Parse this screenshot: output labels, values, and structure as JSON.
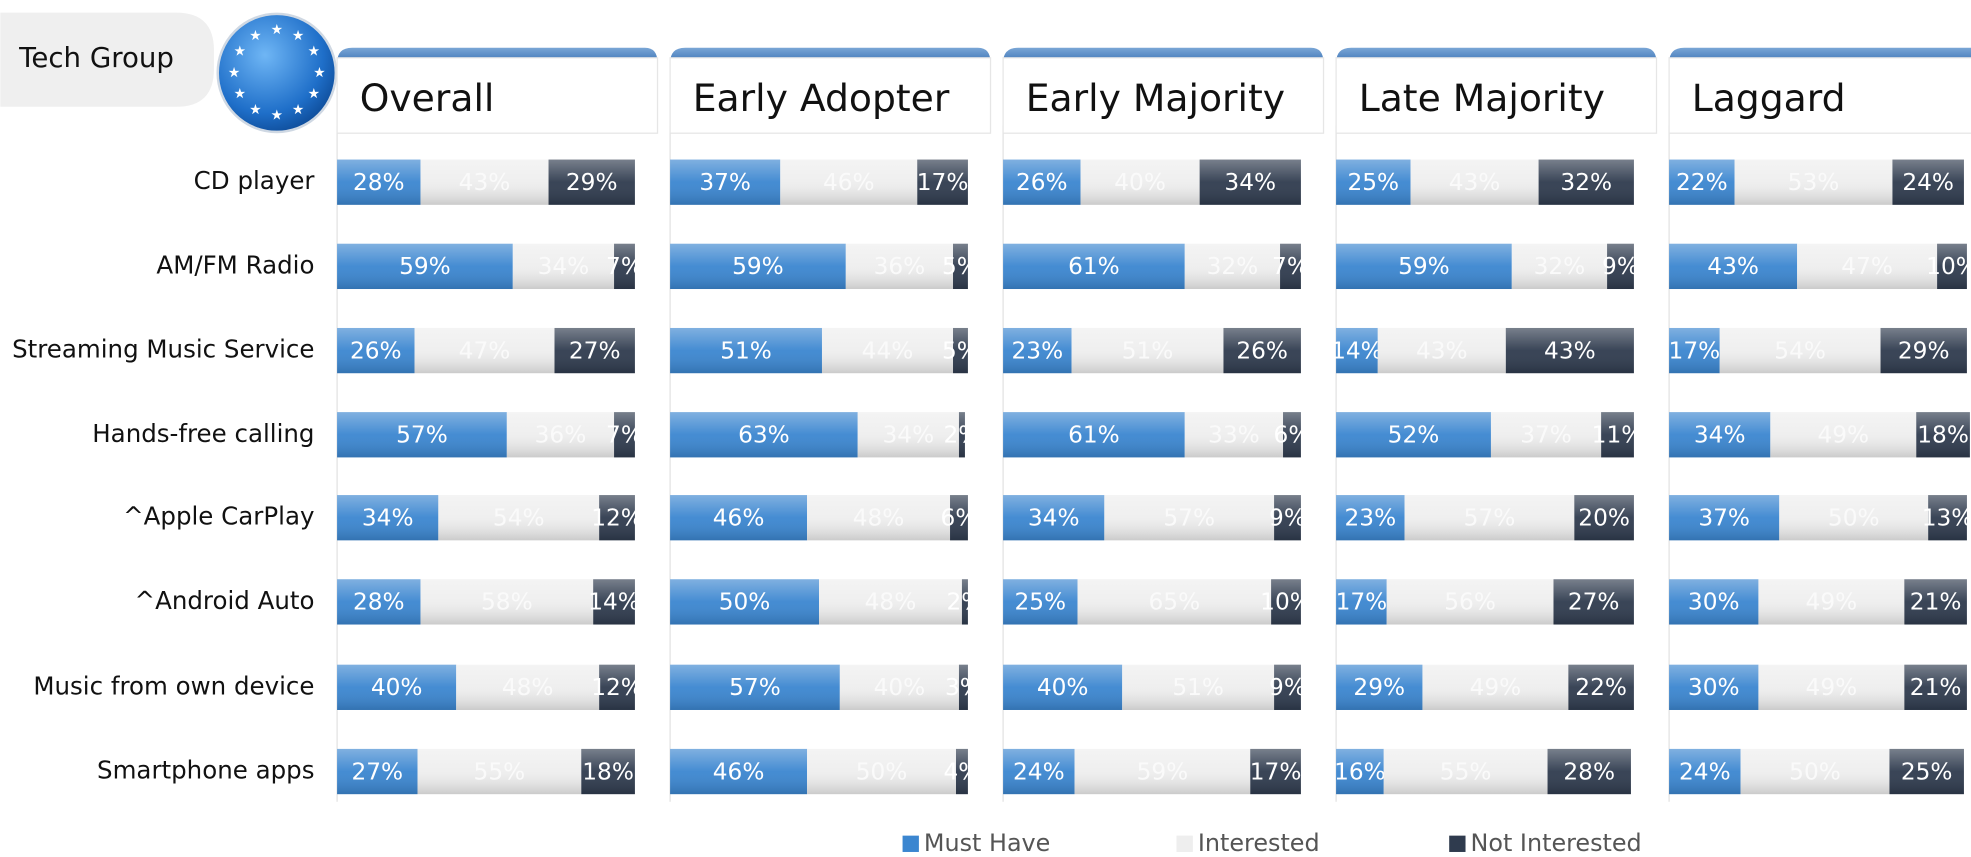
{
  "chart_data": {
    "type": "stacked-bar",
    "group_label": "Tech Group",
    "categories": [
      "CD player",
      "AM/FM Radio",
      "Streaming Music Service",
      "Hands-free calling",
      "^Apple CarPlay",
      "^Android Auto",
      "Music from own device",
      "Smartphone apps"
    ],
    "series": [
      {
        "name": "Must Have",
        "color": "#3b86d0"
      },
      {
        "name": "Interested",
        "color": "#eeeeee"
      },
      {
        "name": "Not Interested",
        "color": "#2f3b4e"
      }
    ],
    "xlim": [
      0,
      100
    ],
    "panels": [
      {
        "title": "Overall",
        "series": [
          {
            "values": [
              28,
              59,
              26,
              57,
              34,
              28,
              40,
              27
            ],
            "value_labels": [
              "28%",
              "59%",
              "26%",
              "57%",
              "34%",
              "28%",
              "40%",
              "27%"
            ]
          },
          {
            "values": [
              43,
              34,
              47,
              36,
              54,
              58,
              48,
              55
            ],
            "value_labels": [
              "43%",
              "34%",
              "47%",
              "36%",
              "54%",
              "58%",
              "48%",
              "55%"
            ]
          },
          {
            "values": [
              29,
              7,
              27,
              7,
              12,
              14,
              12,
              18
            ],
            "value_labels": [
              "29%",
              "7%",
              "27%",
              "7%",
              "12%",
              "14%",
              "12%",
              "18%"
            ]
          }
        ]
      },
      {
        "title": "Early Adopter",
        "series": [
          {
            "values": [
              37,
              59,
              51,
              63,
              46,
              50,
              57,
              46
            ],
            "value_labels": [
              "37%",
              "59%",
              "51%",
              "63%",
              "46%",
              "50%",
              "57%",
              "46%"
            ]
          },
          {
            "values": [
              46,
              36,
              44,
              34,
              48,
              48,
              40,
              50
            ],
            "value_labels": [
              "46%",
              "36%",
              "44%",
              "34%",
              "48%",
              "48%",
              "40%",
              "50%"
            ]
          },
          {
            "values": [
              17,
              5,
              5,
              2,
              6,
              2,
              3,
              4
            ],
            "value_labels": [
              "17%",
              "5%",
              "5%",
              "2%",
              "6%",
              "2%",
              "3%",
              "4%"
            ]
          }
        ]
      },
      {
        "title": "Early Majority",
        "series": [
          {
            "values": [
              26,
              61,
              23,
              61,
              34,
              25,
              40,
              24
            ],
            "value_labels": [
              "26%",
              "61%",
              "23%",
              "61%",
              "34%",
              "25%",
              "40%",
              "24%"
            ]
          },
          {
            "values": [
              40,
              32,
              51,
              33,
              57,
              65,
              51,
              59
            ],
            "value_labels": [
              "40%",
              "32%",
              "51%",
              "33%",
              "57%",
              "65%",
              "51%",
              "59%"
            ]
          },
          {
            "values": [
              34,
              7,
              26,
              6,
              9,
              10,
              9,
              17
            ],
            "value_labels": [
              "34%",
              "7%",
              "26%",
              "6%",
              "9%",
              "10%",
              "9%",
              "17%"
            ]
          }
        ]
      },
      {
        "title": "Late Majority",
        "series": [
          {
            "values": [
              25,
              59,
              14,
              52,
              23,
              17,
              29,
              16
            ],
            "value_labels": [
              "25%",
              "59%",
              "14%",
              "52%",
              "23%",
              "17%",
              "29%",
              "16%"
            ]
          },
          {
            "values": [
              43,
              32,
              43,
              37,
              57,
              56,
              49,
              55
            ],
            "value_labels": [
              "43%",
              "32%",
              "43%",
              "37%",
              "57%",
              "56%",
              "49%",
              "55%"
            ]
          },
          {
            "values": [
              32,
              9,
              43,
              11,
              20,
              27,
              22,
              28
            ],
            "value_labels": [
              "32%",
              "9%",
              "43%",
              "11%",
              "20%",
              "27%",
              "22%",
              "28%"
            ]
          }
        ]
      },
      {
        "title": "Laggard",
        "series": [
          {
            "values": [
              22,
              43,
              17,
              34,
              37,
              30,
              30,
              24
            ],
            "value_labels": [
              "22%",
              "43%",
              "17%",
              "34%",
              "37%",
              "30%",
              "30%",
              "24%"
            ]
          },
          {
            "values": [
              53,
              47,
              54,
              49,
              50,
              49,
              49,
              50
            ],
            "value_labels": [
              "53%",
              "47%",
              "54%",
              "49%",
              "50%",
              "49%",
              "49%",
              "50%"
            ]
          },
          {
            "values": [
              24,
              10,
              29,
              18,
              13,
              21,
              21,
              25
            ],
            "value_labels": [
              "24%",
              "10%",
              "29%",
              "18%",
              "13%",
              "21%",
              "21%",
              "25%"
            ]
          }
        ]
      }
    ]
  }
}
